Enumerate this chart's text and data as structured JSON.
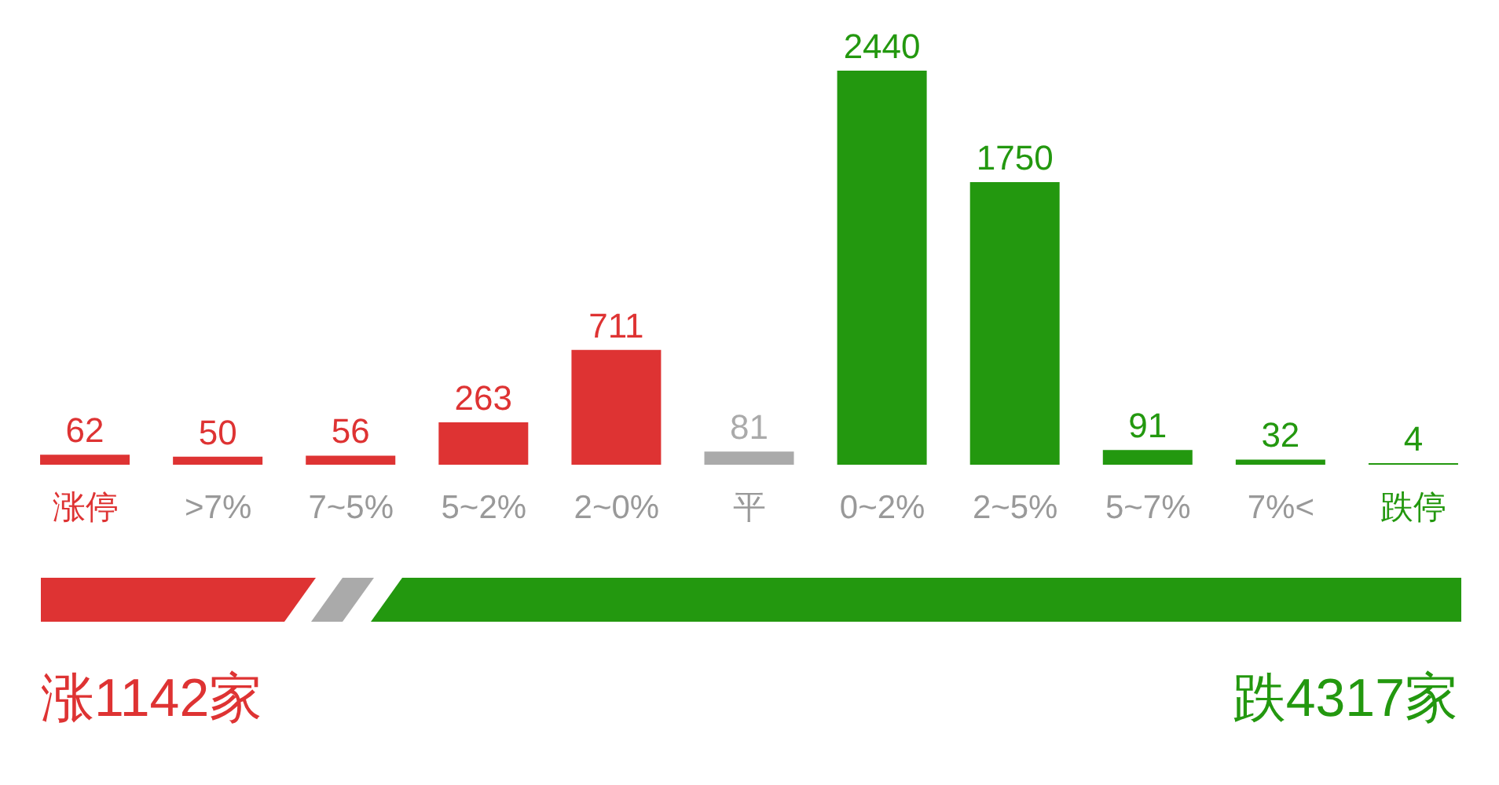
{
  "chart_data": {
    "type": "bar",
    "categories": [
      "涨停",
      ">7%",
      "7~5%",
      "5~2%",
      "2~0%",
      "平",
      "0~2%",
      "2~5%",
      "5~7%",
      "7%<",
      "跌停"
    ],
    "values": [
      62,
      50,
      56,
      263,
      711,
      81,
      2440,
      1750,
      91,
      32,
      4
    ],
    "colors": [
      "#de3333",
      "#de3333",
      "#de3333",
      "#de3333",
      "#de3333",
      "#aaaaaa",
      "#23980f",
      "#23980f",
      "#23980f",
      "#23980f",
      "#23980f"
    ],
    "data_labels": true,
    "grid": false,
    "legend": false,
    "annotations": [
      "涨1142家",
      "跌4317家"
    ]
  }
}
